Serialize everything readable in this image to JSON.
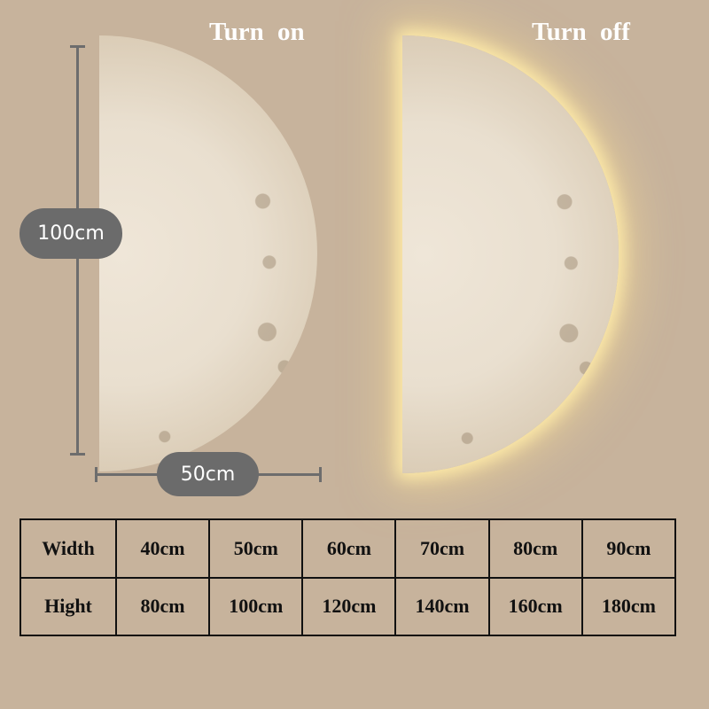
{
  "labels": {
    "left_title": "Turn  on",
    "right_title": "Turn  off"
  },
  "dimensions": {
    "height": "100cm",
    "width": "50cm"
  },
  "size_table": {
    "rows": [
      {
        "header": "Width",
        "values": [
          "40cm",
          "50cm",
          "60cm",
          "70cm",
          "80cm",
          "90cm"
        ]
      },
      {
        "header": "Hight",
        "values": [
          "80cm",
          "100cm",
          "120cm",
          "140cm",
          "160cm",
          "180cm"
        ]
      }
    ]
  },
  "colors": {
    "background": "#c7b39c",
    "pill": "#6b6b6b",
    "glow": "#ffe9a8"
  }
}
